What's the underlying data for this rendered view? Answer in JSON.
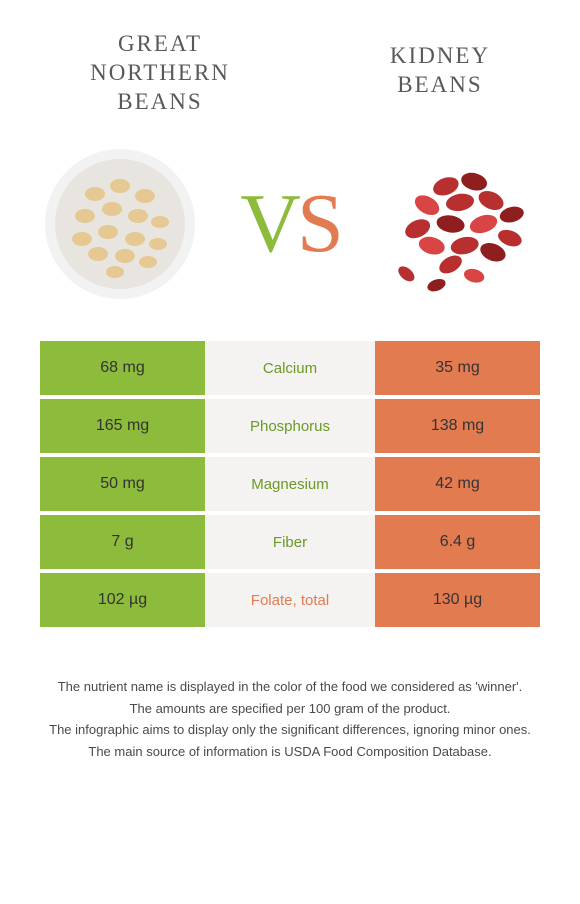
{
  "header": {
    "left_title": "Great Northern beans",
    "right_title": "Kidney beans"
  },
  "colors": {
    "left": "#8dbb3b",
    "right": "#e37b51",
    "mid_bg": "#f5f3f1",
    "left_dark": "#6a9a27",
    "text": "#333333"
  },
  "vs": {
    "v": "V",
    "s": "S"
  },
  "images": {
    "left": {
      "bowl_outer": "#f2f2f2",
      "bowl_inner": "#e8e5e0",
      "bean_color": "#e6c893",
      "bean_edge": "#d4b070"
    },
    "right": {
      "bean_color": "#b82f2f",
      "bean_highlight": "#d94545",
      "bean_dark": "#8f1f1f"
    }
  },
  "rows": [
    {
      "label": "Calcium",
      "left": "68 mg",
      "right": "35 mg",
      "winner": "left"
    },
    {
      "label": "Phosphorus",
      "left": "165 mg",
      "right": "138 mg",
      "winner": "left"
    },
    {
      "label": "Magnesium",
      "left": "50 mg",
      "right": "42 mg",
      "winner": "left"
    },
    {
      "label": "Fiber",
      "left": "7 g",
      "right": "6.4 g",
      "winner": "left"
    },
    {
      "label": "Folate, total",
      "left": "102 µg",
      "right": "130 µg",
      "winner": "right"
    }
  ],
  "footnotes": [
    "The nutrient name is displayed in the color of the food we considered as 'winner'.",
    "The amounts are specified per 100 gram of the product.",
    "The infographic aims to display only the significant differences, ignoring minor ones.",
    "The main source of information is USDA Food Composition Database."
  ]
}
